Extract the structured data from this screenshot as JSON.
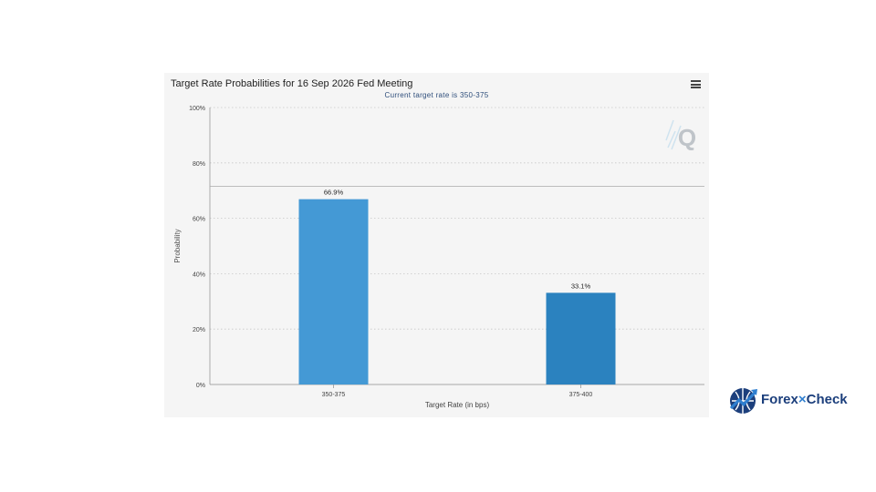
{
  "chart_data": {
    "type": "bar",
    "title": "Target Rate Probabilities for 16 Sep 2026 Fed Meeting",
    "subtitle": "Current target rate is 350-375",
    "xlabel": "Target Rate (in bps)",
    "ylabel": "Probability",
    "categories": [
      "350-375",
      "375-400"
    ],
    "values": [
      66.9,
      33.1
    ],
    "data_labels": [
      "66.9%",
      "33.1%"
    ],
    "colors": [
      "#4499d5",
      "#2b82bf"
    ],
    "ylim": [
      0,
      100
    ],
    "yticks": [
      0,
      20,
      40,
      60,
      80,
      100
    ],
    "ytick_labels": [
      "0%",
      "20%",
      "40%",
      "60%",
      "80%",
      "100%"
    ],
    "reference_line": 71.5,
    "grid": true,
    "legend": "none"
  },
  "branding": {
    "logo_part1": "Forex",
    "logo_part2": "Check",
    "logo_colors": [
      "#1c3f7c",
      "#2f7fd0"
    ]
  }
}
